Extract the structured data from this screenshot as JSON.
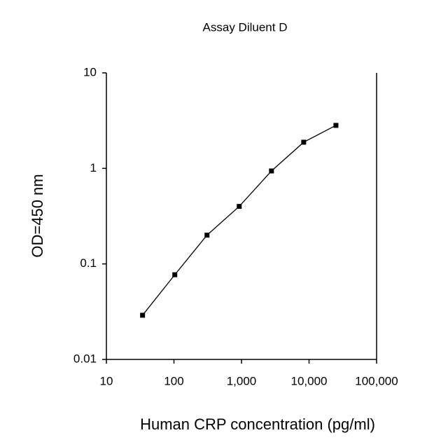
{
  "chart_data": {
    "type": "line",
    "title": "Assay Diluent D",
    "x_label": "Human CRP concentration (pg/ml)",
    "y_label": "OD=450 nm",
    "x": [
      34.3,
      102.9,
      308.6,
      926,
      2778,
      8333,
      25000
    ],
    "series": [
      {
        "color": "#000000",
        "values": [
          0.029,
          0.077,
          0.2,
          0.4,
          0.94,
          1.88,
          2.82
        ]
      }
    ],
    "xlog": true,
    "ylog": true,
    "xlim": [
      10,
      100000
    ],
    "ylim": [
      0.01,
      10
    ],
    "xticks": [
      10,
      100,
      {
        "value": 1000,
        "label": "1,000"
      },
      {
        "value": 10000,
        "label": "10,000"
      },
      {
        "value": 100000,
        "label": "100,000"
      }
    ],
    "yticks": [
      0.01,
      0.1,
      1,
      10
    ]
  }
}
